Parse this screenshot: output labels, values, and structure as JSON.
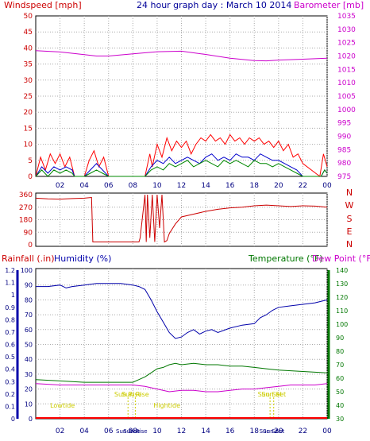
{
  "chart_data": [
    {
      "panel": "wind-barometer",
      "type": "line",
      "title": "24 hour graph day : March 10 2014",
      "left_label": "Windspeed [mph]",
      "right_label": "Barometer [mb]",
      "left_ticks": [
        "0",
        "5",
        "10",
        "15",
        "20",
        "25",
        "30",
        "35",
        "40",
        "45",
        "50"
      ],
      "right_ticks": [
        "975",
        "980",
        "985",
        "990",
        "995",
        "1000",
        "1005",
        "1010",
        "1015",
        "1020",
        "1025",
        "1030",
        "1035"
      ],
      "x_ticks": [
        "02",
        "04",
        "06",
        "08",
        "10",
        "12",
        "14",
        "16",
        "18",
        "20",
        "22",
        "00"
      ],
      "ylim_left": [
        0,
        50
      ],
      "ylim_right": [
        975,
        1035
      ],
      "grid": true,
      "barometer_color": "#cc00cc",
      "gust_color": "#ff0000",
      "speed_color": "#0000cc",
      "avg_color": "#008800",
      "series": [
        {
          "key": "barometer",
          "hours": [
            0,
            2,
            4,
            5,
            6,
            8,
            10,
            12,
            14,
            16,
            18,
            19,
            20,
            22,
            24
          ],
          "values": [
            1022,
            1021.5,
            1020.5,
            1020,
            1020,
            1020.8,
            1021.6,
            1021.8,
            1020.6,
            1019.2,
            1018.3,
            1018.2,
            1018.5,
            1018.8,
            1019.2
          ]
        },
        {
          "key": "gust",
          "hours": [
            0,
            0.4,
            0.8,
            1.2,
            1.6,
            2,
            2.4,
            2.8,
            3.2,
            4,
            4.4,
            4.8,
            5.2,
            5.6,
            6,
            9,
            9.4,
            9.6,
            10,
            10.4,
            10.8,
            11.2,
            11.6,
            12,
            12.4,
            12.8,
            13.2,
            13.6,
            14,
            14.4,
            14.8,
            15.2,
            15.6,
            16,
            16.4,
            16.8,
            17.2,
            17.6,
            18,
            18.4,
            18.8,
            19.2,
            19.6,
            20,
            20.4,
            20.8,
            21.2,
            21.6,
            22,
            23.4,
            23.7,
            24
          ],
          "values": [
            0,
            6,
            2,
            7,
            4,
            7,
            3,
            6,
            0,
            0,
            5,
            8,
            3,
            6,
            0,
            0,
            7,
            3,
            10,
            6,
            12,
            8,
            11,
            9,
            11,
            7,
            10,
            12,
            11,
            13,
            11,
            12,
            10,
            13,
            11,
            12,
            10,
            12,
            11,
            12,
            10,
            11,
            9,
            11,
            8,
            10,
            6,
            7,
            4,
            0,
            7,
            3
          ]
        },
        {
          "key": "speed",
          "hours": [
            0,
            0.5,
            1,
            1.5,
            2,
            2.5,
            3,
            3.2,
            4,
            4.5,
            5,
            5.5,
            6,
            9,
            9.5,
            10,
            10.5,
            11,
            11.5,
            12,
            12.5,
            13,
            13.5,
            14,
            14.5,
            15,
            15.5,
            16,
            16.5,
            17,
            17.5,
            18,
            18.5,
            19,
            19.5,
            20,
            20.5,
            21,
            21.5,
            22,
            23.5,
            23.8,
            24
          ],
          "values": [
            0,
            3,
            1,
            3,
            2,
            3,
            2,
            0,
            0,
            2,
            4,
            2,
            0,
            0,
            3,
            5,
            4,
            6,
            4,
            5,
            6,
            5,
            4,
            6,
            7,
            5,
            6,
            5,
            7,
            6,
            6,
            5,
            7,
            6,
            5,
            5,
            4,
            3,
            2,
            0,
            0,
            2,
            1
          ]
        },
        {
          "key": "average",
          "hours": [
            0,
            0.5,
            1,
            1.5,
            2,
            2.5,
            3,
            3.2,
            4,
            4.5,
            5,
            5.5,
            6,
            9,
            9.5,
            10,
            10.5,
            11,
            11.5,
            12,
            12.5,
            13,
            13.5,
            14,
            14.5,
            15,
            15.5,
            16,
            16.5,
            17,
            17.5,
            18,
            18.5,
            19,
            19.5,
            20,
            20.5,
            21,
            21.5,
            22,
            23.5,
            23.8,
            24
          ],
          "values": [
            0,
            2,
            0,
            2,
            1,
            2,
            1,
            0,
            0,
            1,
            2,
            1,
            0,
            0,
            2,
            3,
            2,
            4,
            3,
            4,
            5,
            3,
            4,
            5,
            4,
            3,
            5,
            4,
            5,
            4,
            3,
            5,
            4,
            4,
            3,
            4,
            3,
            2,
            1,
            0,
            0,
            2,
            1
          ]
        }
      ]
    },
    {
      "panel": "wind-direction",
      "type": "line",
      "left_ticks": [
        "0",
        "90",
        "180",
        "270",
        "360"
      ],
      "right_ticks": [
        "N",
        "W",
        "S",
        "E",
        "N"
      ],
      "ylim": [
        0,
        360
      ],
      "line_color": "#cc0000",
      "direction": {
        "hours": [
          0,
          1,
          2,
          3,
          4,
          4.6,
          4.7,
          5,
          6,
          7,
          8,
          8.5,
          8.6,
          9,
          9.1,
          9.2,
          9.4,
          9.6,
          9.8,
          10,
          10.2,
          10.4,
          10.6,
          10.8,
          11,
          11.5,
          12,
          13,
          14,
          15,
          16,
          17,
          18,
          19,
          20,
          21,
          22,
          23,
          24
        ],
        "values": [
          335,
          330,
          328,
          332,
          335,
          340,
          20,
          20,
          20,
          20,
          20,
          20,
          50,
          360,
          20,
          360,
          50,
          360,
          20,
          360,
          120,
          360,
          20,
          30,
          80,
          150,
          200,
          220,
          240,
          255,
          265,
          270,
          280,
          285,
          280,
          275,
          280,
          278,
          270
        ]
      }
    },
    {
      "panel": "temperature-humidity",
      "type": "line",
      "left_label_rain": "Rainfall (.in)",
      "left_label_humidity": "Humidity (%)",
      "right_label_temperature": "Temperature (°F)",
      "right_label_dewpoint": "Dew Point (°F)",
      "rain_ticks": [
        "0",
        "0.1",
        "0.2",
        "0.3",
        "0.4",
        "0.5",
        "0.6",
        "0.7",
        "0.8",
        "0.9",
        "1",
        "1.1",
        "1.2"
      ],
      "humidity_ticks": [
        "0",
        "10",
        "20",
        "30",
        "40",
        "50",
        "60",
        "70",
        "80",
        "90",
        "100"
      ],
      "temp_ticks": [
        "30",
        "40",
        "50",
        "60",
        "70",
        "80",
        "90",
        "100",
        "110",
        "120",
        "130",
        "140"
      ],
      "rain_ylim": [
        0,
        1.2
      ],
      "humidity_ylim": [
        0,
        100
      ],
      "temp_ylim": [
        30,
        140
      ],
      "x_ticks": [
        "02",
        "04",
        "06",
        "08",
        "10",
        "12",
        "14",
        "16",
        "18",
        "20",
        "22",
        "00"
      ],
      "annotations": [
        {
          "text": "Sun Rise",
          "hour": 7.6
        },
        {
          "text": "Sun Rise",
          "hour": 8.2
        },
        {
          "text": "Sun Set",
          "hour": 19.3
        },
        {
          "text": "Sun Set",
          "hour": 19.6
        },
        {
          "text": "Lowtide",
          "hour": 2.2
        },
        {
          "text": "Hightide",
          "hour": 10.8
        }
      ],
      "humidity_color": "#0000aa",
      "temperature_color": "#007700",
      "dewpoint_color": "#cc00cc",
      "rain_color": "#ff0000",
      "humidity": {
        "hours": [
          0,
          1,
          2,
          2.5,
          3,
          4,
          5,
          6,
          7,
          8,
          8.5,
          9,
          9.5,
          10,
          10.5,
          11,
          11.5,
          12,
          12.5,
          13,
          13.5,
          14,
          14.5,
          15,
          16,
          17,
          18,
          18.5,
          19,
          19.5,
          20,
          21,
          22,
          23,
          24
        ],
        "values": [
          89,
          89,
          90,
          88,
          89,
          90,
          91,
          91,
          91,
          90,
          89,
          87,
          80,
          72,
          65,
          58,
          54,
          55,
          58,
          60,
          57,
          59,
          60,
          58,
          61,
          63,
          64,
          68,
          70,
          73,
          75,
          76,
          77,
          78,
          80
        ]
      },
      "temperature": {
        "hours": [
          0,
          2,
          4,
          6,
          8,
          8.5,
          9,
          9.5,
          10,
          10.5,
          11,
          11.5,
          12,
          13,
          14,
          15,
          16,
          17,
          18,
          19,
          20,
          22,
          24
        ],
        "values": [
          59,
          58,
          57,
          57,
          57,
          59,
          61,
          64,
          67,
          68,
          70,
          71,
          70,
          71,
          70,
          70,
          69,
          69,
          68,
          67,
          66,
          65,
          64
        ]
      },
      "dewpoint": {
        "hours": [
          0,
          2,
          4,
          6,
          7,
          8,
          9,
          10,
          11,
          12,
          13,
          14,
          15,
          16,
          17,
          18,
          19,
          20,
          21,
          22,
          23,
          24
        ],
        "values": [
          56,
          55,
          55,
          55,
          55,
          55,
          54,
          52,
          50,
          51,
          51,
          50,
          50,
          51,
          52,
          52,
          53,
          54,
          55,
          55,
          55,
          56
        ]
      }
    }
  ]
}
